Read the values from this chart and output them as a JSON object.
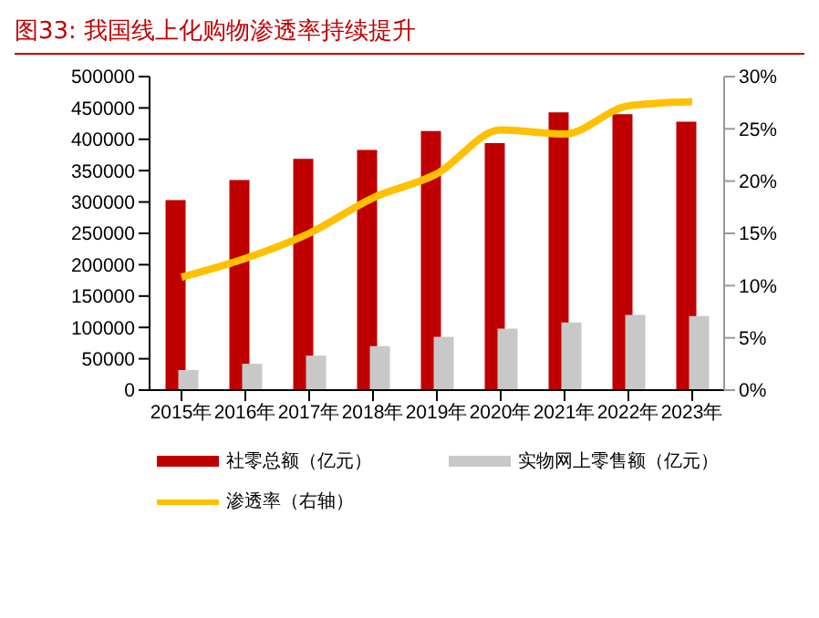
{
  "chart_data": {
    "type": "bar",
    "title": "图33:  我国线上化购物渗透率持续提升",
    "categories": [
      "2015年",
      "2016年",
      "2017年",
      "2018年",
      "2019年",
      "2020年",
      "2021年",
      "2022年",
      "2023年"
    ],
    "series": [
      {
        "name": "社零总额（亿元）",
        "color": "#c00000",
        "values": [
          303000,
          335000,
          369000,
          383000,
          413000,
          394000,
          443000,
          440000,
          428000
        ]
      },
      {
        "name": "实物网上零售额（亿元）",
        "color": "#c8c8c8",
        "values": [
          32000,
          42000,
          55000,
          70000,
          85000,
          98000,
          108000,
          120000,
          118000
        ]
      },
      {
        "name": "渗透率（右轴）",
        "type": "line",
        "axis": "y2",
        "color": "#ffc000",
        "values": [
          10.8,
          12.6,
          15.0,
          18.4,
          20.7,
          24.9,
          24.5,
          27.2,
          27.6
        ]
      }
    ],
    "ylim": [
      0,
      500000
    ],
    "yticks": [
      0,
      50000,
      100000,
      150000,
      200000,
      250000,
      300000,
      350000,
      400000,
      450000,
      500000
    ],
    "y2lim": [
      0,
      30
    ],
    "y2ticks": [
      {
        "value": 0,
        "label": "0%"
      },
      {
        "value": 5,
        "label": "5%"
      },
      {
        "value": 10,
        "label": "10%"
      },
      {
        "value": 15,
        "label": "15%"
      },
      {
        "value": 20,
        "label": "20%"
      },
      {
        "value": 25,
        "label": "25%"
      },
      {
        "value": 30,
        "label": "30%"
      }
    ],
    "grid": false,
    "legend": "bottom",
    "marker": "none"
  }
}
